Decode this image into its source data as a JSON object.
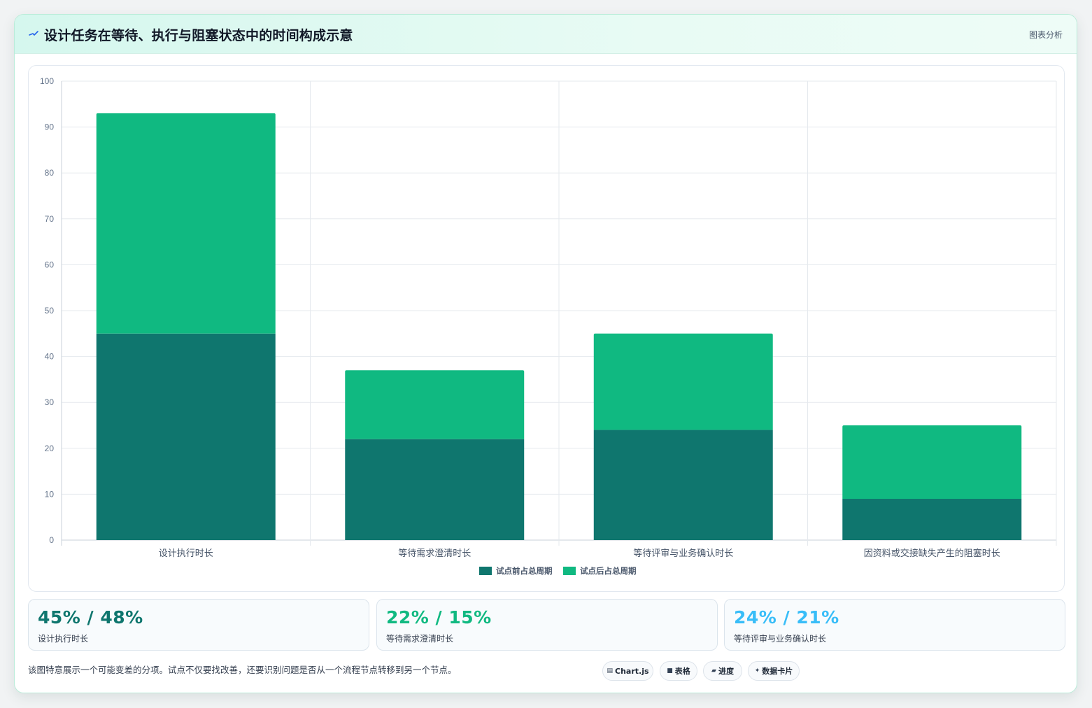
{
  "header": {
    "title": "设计任务在等待、执行与阻塞状态中的时间构成示意",
    "tag": "图表分析",
    "title_icon": "sparkle-icon"
  },
  "chart_data": {
    "type": "bar",
    "stacked": true,
    "categories": [
      "设计执行时长",
      "等待需求澄清时长",
      "等待评审与业务确认时长",
      "因资料或交接缺失产生的阻塞时长"
    ],
    "series": [
      {
        "name": "试点前占总周期",
        "values": [
          45,
          22,
          24,
          9
        ],
        "color": "#0f766e"
      },
      {
        "name": "试点后占总周期",
        "values": [
          48,
          15,
          21,
          16
        ],
        "color": "#10b981"
      }
    ],
    "ylim": [
      0,
      100
    ],
    "yticks": [
      0,
      10,
      20,
      30,
      40,
      50,
      60,
      70,
      80,
      90,
      100
    ],
    "grid": true,
    "legend_position": "bottom"
  },
  "stats": [
    {
      "value": "45% / 48%",
      "label": "设计执行时长",
      "color": "#0f766e"
    },
    {
      "value": "22% / 15%",
      "label": "等待需求澄清时长",
      "color": "#10b981"
    },
    {
      "value": "24% / 21%",
      "label": "等待评审与业务确认时长",
      "color": "#38bdf8"
    }
  ],
  "note": "该图特意展示一个可能变差的分项。试点不仅要找改善，还要识别问题是否从一个流程节点转移到另一个节点。",
  "pills": [
    {
      "icon": "▤",
      "label": "Chart.js",
      "icon_name": "chart-icon"
    },
    {
      "icon": "■",
      "label": "表格",
      "icon_name": "table-icon"
    },
    {
      "icon": "▰",
      "label": "进度",
      "icon_name": "progress-icon"
    },
    {
      "icon": "✦",
      "label": "数据卡片",
      "icon_name": "data-card-icon"
    }
  ]
}
